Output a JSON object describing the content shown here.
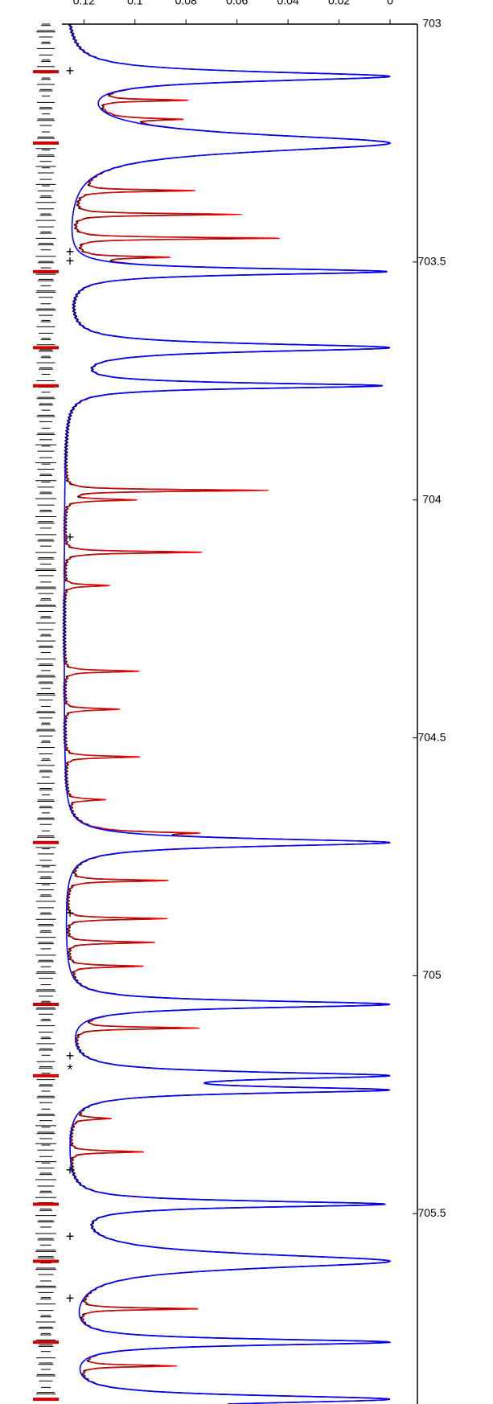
{
  "chart_data": {
    "type": "line",
    "title": "",
    "xlabel": "",
    "ylabel": "",
    "orientation": "rotated-90-clockwise",
    "xlim": [
      703.0,
      705.9
    ],
    "ylim": [
      0,
      0.13
    ],
    "x_ticks": [
      {
        "value": 703,
        "label": "703"
      },
      {
        "value": 703.5,
        "label": "703.5"
      },
      {
        "value": 704,
        "label": "704"
      },
      {
        "value": 704.5,
        "label": "704.5"
      },
      {
        "value": 705,
        "label": "705"
      },
      {
        "value": 705.5,
        "label": "705.5"
      }
    ],
    "y_ticks": [
      {
        "value": 0,
        "label": "0"
      },
      {
        "value": 0.02,
        "label": "0.02"
      },
      {
        "value": 0.04,
        "label": "0.04"
      },
      {
        "value": 0.06,
        "label": "0.06"
      },
      {
        "value": 0.08,
        "label": "0.08"
      },
      {
        "value": 0.1,
        "label": "0.1"
      },
      {
        "value": 0.12,
        "label": "0.12"
      }
    ],
    "grid": false,
    "legend": "none",
    "colors": {
      "observed": "#000000",
      "model_full": "#ff0000",
      "model_main": "#0000ff",
      "line_markers_major": "#cc0000"
    },
    "continuum": 0.128,
    "absorption_lines": [
      {
        "x": 703.11,
        "depth": 0.128,
        "width": 0.012
      },
      {
        "x": 703.25,
        "depth": 0.128,
        "width": 0.022
      },
      {
        "x": 703.52,
        "depth": 0.127,
        "width": 0.008
      },
      {
        "x": 703.68,
        "depth": 0.128,
        "width": 0.01
      },
      {
        "x": 703.76,
        "depth": 0.125,
        "width": 0.007
      },
      {
        "x": 704.72,
        "depth": 0.128,
        "width": 0.01
      },
      {
        "x": 705.06,
        "depth": 0.128,
        "width": 0.009
      },
      {
        "x": 705.21,
        "depth": 0.128,
        "width": 0.009
      },
      {
        "x": 705.24,
        "depth": 0.128,
        "width": 0.008
      },
      {
        "x": 705.48,
        "depth": 0.126,
        "width": 0.008
      },
      {
        "x": 705.6,
        "depth": 0.128,
        "width": 0.018
      },
      {
        "x": 705.77,
        "depth": 0.128,
        "width": 0.008
      },
      {
        "x": 705.89,
        "depth": 0.128,
        "width": 0.01
      }
    ],
    "weak_lines": [
      {
        "x": 703.16,
        "depth": 0.04
      },
      {
        "x": 703.2,
        "depth": 0.03
      },
      {
        "x": 703.35,
        "depth": 0.048
      },
      {
        "x": 703.4,
        "depth": 0.068
      },
      {
        "x": 703.45,
        "depth": 0.085
      },
      {
        "x": 703.49,
        "depth": 0.035
      },
      {
        "x": 703.98,
        "depth": 0.08
      },
      {
        "x": 704.0,
        "depth": 0.028
      },
      {
        "x": 704.11,
        "depth": 0.055
      },
      {
        "x": 704.18,
        "depth": 0.018
      },
      {
        "x": 704.36,
        "depth": 0.03
      },
      {
        "x": 704.44,
        "depth": 0.022
      },
      {
        "x": 704.54,
        "depth": 0.03
      },
      {
        "x": 704.63,
        "depth": 0.015
      },
      {
        "x": 704.7,
        "depth": 0.035
      },
      {
        "x": 704.8,
        "depth": 0.04
      },
      {
        "x": 704.88,
        "depth": 0.04
      },
      {
        "x": 704.93,
        "depth": 0.035
      },
      {
        "x": 704.98,
        "depth": 0.03
      },
      {
        "x": 705.11,
        "depth": 0.05
      },
      {
        "x": 705.3,
        "depth": 0.015
      },
      {
        "x": 705.37,
        "depth": 0.03
      },
      {
        "x": 705.7,
        "depth": 0.05
      },
      {
        "x": 705.82,
        "depth": 0.04
      }
    ],
    "feature_markers": [
      {
        "x": 703.1,
        "symbol": "+"
      },
      {
        "x": 703.48,
        "symbol": "+"
      },
      {
        "x": 703.5,
        "symbol": "+"
      },
      {
        "x": 704.08,
        "symbol": "+"
      },
      {
        "x": 704.87,
        "symbol": "+"
      },
      {
        "x": 705.17,
        "symbol": "+"
      },
      {
        "x": 705.2,
        "symbol": "*"
      },
      {
        "x": 705.41,
        "symbol": "+"
      },
      {
        "x": 705.55,
        "symbol": "+"
      },
      {
        "x": 705.68,
        "symbol": "+"
      }
    ],
    "major_line_markers": [
      703.1,
      703.25,
      703.52,
      703.68,
      703.76,
      704.72,
      705.06,
      705.21,
      705.48,
      705.6,
      705.77,
      705.89
    ]
  }
}
